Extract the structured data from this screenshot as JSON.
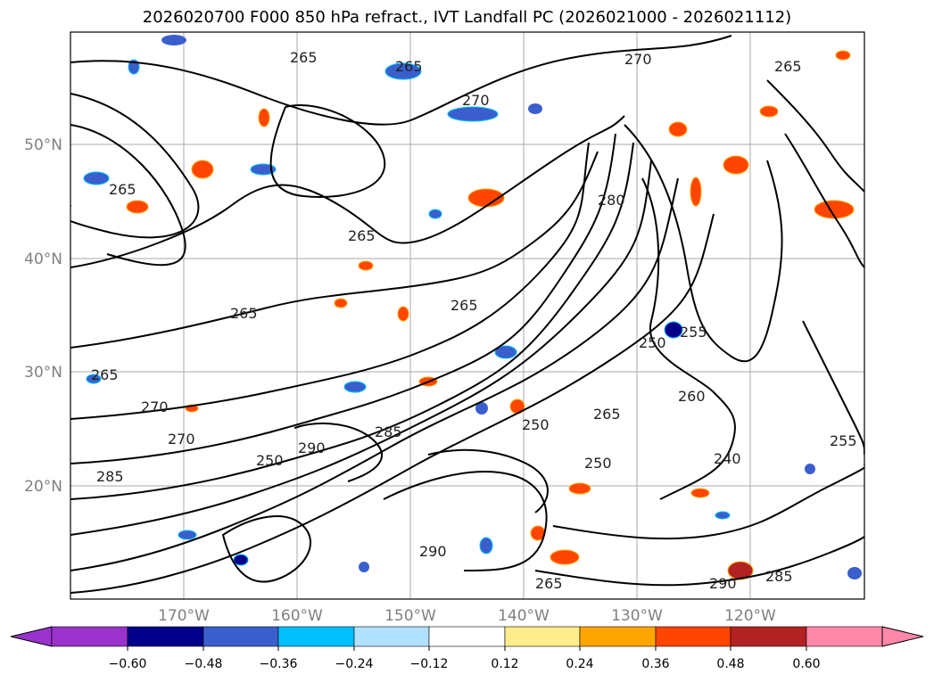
{
  "title": "2026020700 F000 850 hPa refract., IVT Landfall PC (2026021000 - 2026021112)",
  "lat_labels": [
    "50°N",
    "40°N",
    "30°N",
    "20°N"
  ],
  "lon_labels": [
    "170°W",
    "160°W",
    "150°W",
    "140°W",
    "130°W",
    "120°W"
  ],
  "colorbar": {
    "tick_labels": [
      "−0.60",
      "−0.48",
      "−0.36",
      "−0.24",
      "−0.12",
      "0.12",
      "0.24",
      "0.36",
      "0.48",
      "0.60"
    ],
    "colors": [
      "#9933cc",
      "#00008b",
      "#3a5fcd",
      "#00bfff",
      "#b0e2ff",
      "#ffffff",
      "#ffec8b",
      "#ffa500",
      "#ff4500",
      "#b22222",
      "#ff88aa"
    ]
  },
  "contour_labels": [
    "265",
    "270",
    "265",
    "265",
    "270",
    "265",
    "265",
    "265",
    "270",
    "265",
    "280",
    "290",
    "285",
    "250",
    "260",
    "265",
    "270",
    "250",
    "240",
    "255",
    "250",
    "285",
    "290",
    "285",
    "265",
    "290",
    "250",
    "255",
    "265"
  ]
}
